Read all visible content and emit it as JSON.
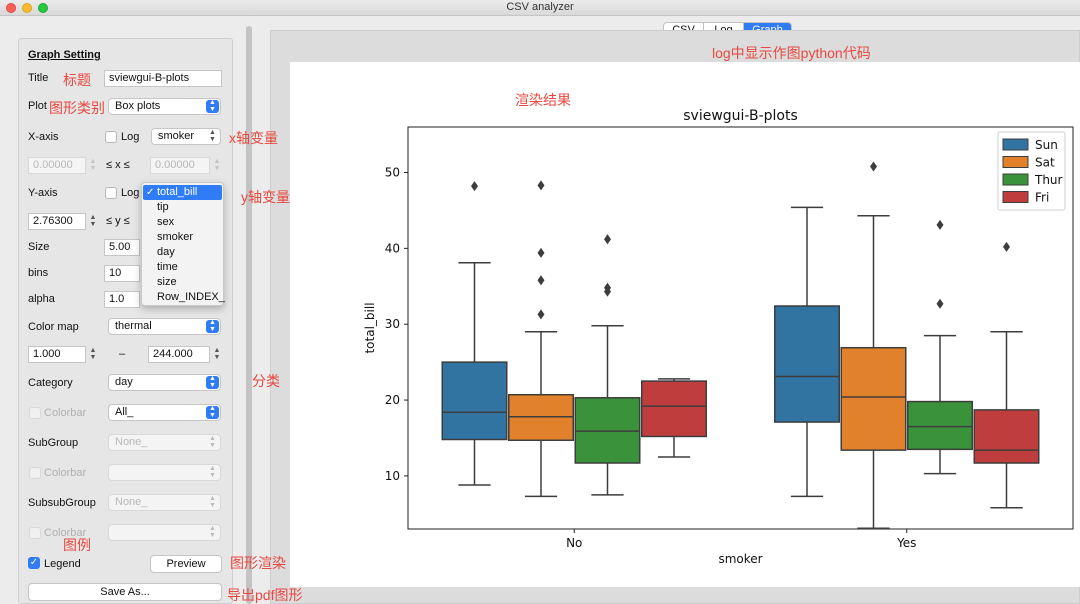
{
  "window": {
    "title": "CSV analyzer"
  },
  "tabs": [
    {
      "label": "CSV",
      "active": false
    },
    {
      "label": "Log",
      "active": false
    },
    {
      "label": "Graph",
      "active": true
    }
  ],
  "annotations": {
    "title": "标题",
    "plot": "图形类别",
    "xaxis": "x轴变量",
    "yaxis": "y轴变量",
    "category": "分类",
    "legend": "图例",
    "preview": "图形渲染",
    "save": "导出pdf图形",
    "log": "log中显示作图python代码",
    "render": "渲染结果"
  },
  "settings": {
    "header": "Graph Setting",
    "title_label": "Title",
    "title_value": "sviewgui-B-plots",
    "plot_label": "Plot",
    "plot_value": "Box plots",
    "xaxis_label": "X-axis",
    "log_label": "Log",
    "xaxis_value": "smoker",
    "x_min": "0.00000",
    "x_max": "0.00000",
    "range_sep_x": "≤ x ≤",
    "yaxis_label": "Y-axis",
    "y_min": "2.76300",
    "range_sep_y": "≤ y ≤",
    "size_label": "Size",
    "size_value": "5.00",
    "bins_label": "bins",
    "bins_value": "10",
    "alpha_label": "alpha",
    "alpha_value": "1.0",
    "colormap_label": "Color map",
    "colormap_value": "thermal",
    "cmap_min": "1.000",
    "cmap_dash": "–",
    "cmap_max": "244.000",
    "category_label": "Category",
    "category_value": "day",
    "colorbar_label": "Colorbar",
    "colorbar_value": "All_",
    "subgroup_label": "SubGroup",
    "subgroup_value": "None_",
    "subsubgroup_label": "SubsubGroup",
    "subsubgroup_value": "None_",
    "legend_label": "Legend",
    "legend_checked": true,
    "preview_button": "Preview",
    "saveas_button": "Save As..."
  },
  "y_dropdown": {
    "selected": "total_bill",
    "check": "✓",
    "options": [
      "total_bill",
      "tip",
      "sex",
      "smoker",
      "day",
      "time",
      "size",
      "Row_INDEX_"
    ]
  },
  "chart_data": {
    "type": "box",
    "title": "sviewgui-B-plots",
    "xlabel": "smoker",
    "ylabel": "total_bill",
    "categories": [
      "No",
      "Yes"
    ],
    "ylim": [
      3,
      56
    ],
    "yticks": [
      10,
      20,
      30,
      40,
      50
    ],
    "legend_position": "top-right",
    "series": [
      {
        "name": "Sun",
        "color": "#3274a1",
        "boxes": [
          {
            "whisker_low": 8.8,
            "q1": 14.8,
            "median": 18.4,
            "q3": 25.0,
            "whisker_high": 38.1,
            "outliers": [
              48.2
            ]
          },
          {
            "whisker_low": 7.3,
            "q1": 17.1,
            "median": 23.1,
            "q3": 32.4,
            "whisker_high": 45.4,
            "outliers": []
          }
        ]
      },
      {
        "name": "Sat",
        "color": "#e1812c",
        "boxes": [
          {
            "whisker_low": 7.3,
            "q1": 14.7,
            "median": 17.8,
            "q3": 20.7,
            "whisker_high": 29.0,
            "outliers": [
              31.3,
              35.8,
              39.4,
              48.3
            ]
          },
          {
            "whisker_low": 3.1,
            "q1": 13.4,
            "median": 20.4,
            "q3": 26.9,
            "whisker_high": 44.3,
            "outliers": [
              50.8
            ]
          }
        ]
      },
      {
        "name": "Thur",
        "color": "#3a923a",
        "boxes": [
          {
            "whisker_low": 7.5,
            "q1": 11.7,
            "median": 15.9,
            "q3": 20.3,
            "whisker_high": 29.8,
            "outliers": [
              34.3,
              34.8,
              41.2
            ]
          },
          {
            "whisker_low": 10.3,
            "q1": 13.5,
            "median": 16.5,
            "q3": 19.8,
            "whisker_high": 28.5,
            "outliers": [
              32.7,
              43.1
            ]
          }
        ]
      },
      {
        "name": "Fri",
        "color": "#c03d3e",
        "boxes": [
          {
            "whisker_low": 12.5,
            "q1": 15.2,
            "median": 19.2,
            "q3": 22.5,
            "whisker_high": 22.8,
            "outliers": []
          },
          {
            "whisker_low": 5.8,
            "q1": 11.7,
            "median": 13.4,
            "q3": 18.7,
            "whisker_high": 29.0,
            "outliers": [
              40.2
            ]
          }
        ]
      }
    ]
  }
}
